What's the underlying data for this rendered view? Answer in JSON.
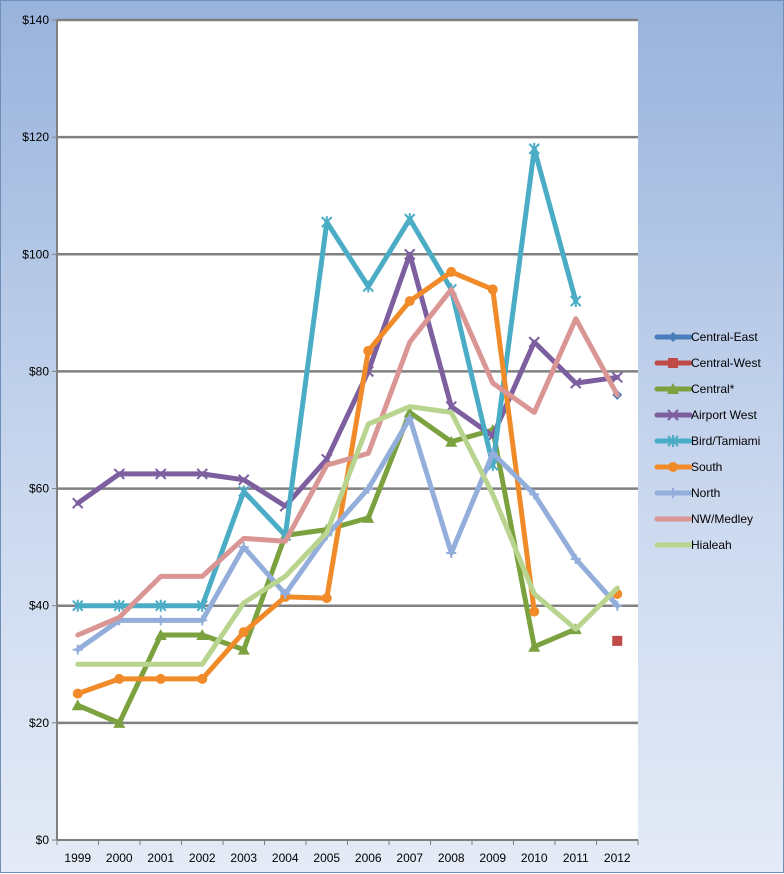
{
  "chart_data": {
    "type": "line",
    "title": "",
    "xlabel": "",
    "ylabel": "",
    "categories": [
      "1999",
      "2000",
      "2001",
      "2002",
      "2003",
      "2004",
      "2005",
      "2006",
      "2007",
      "2008",
      "2009",
      "2010",
      "2011",
      "2012"
    ],
    "ylim": [
      0,
      140
    ],
    "yticks": [
      0,
      20,
      40,
      60,
      80,
      100,
      120,
      140
    ],
    "ytick_labels": [
      "$0",
      "$20",
      "$40",
      "$60",
      "$80",
      "$100",
      "$120",
      "$140"
    ],
    "grid": true,
    "legend_position": "right",
    "series": [
      {
        "name": "Central-East",
        "color": "#4a7ebb",
        "marker": "diamond",
        "values": [
          null,
          null,
          null,
          null,
          null,
          null,
          null,
          null,
          null,
          null,
          null,
          null,
          null,
          76
        ]
      },
      {
        "name": "Central-West",
        "color": "#be4b48",
        "marker": "square",
        "values": [
          null,
          null,
          null,
          null,
          null,
          null,
          null,
          null,
          null,
          null,
          null,
          null,
          null,
          34
        ]
      },
      {
        "name": "Central*",
        "color": "#7ba23f",
        "marker": "triangle",
        "values": [
          23,
          20,
          35,
          35,
          32.5,
          52,
          53,
          55,
          73,
          68,
          70,
          33,
          36,
          null
        ]
      },
      {
        "name": "Airport West",
        "color": "#7d5fa0",
        "marker": "x",
        "values": [
          57.5,
          62.5,
          62.5,
          62.5,
          61.5,
          57,
          65,
          80,
          100,
          74,
          69,
          85,
          78,
          79
        ]
      },
      {
        "name": "Bird/Tamiami",
        "color": "#4aacc5",
        "marker": "star",
        "values": [
          40,
          40,
          40,
          40,
          59.5,
          52,
          105.5,
          94.5,
          106,
          94,
          64,
          118,
          92,
          null
        ]
      },
      {
        "name": "South",
        "color": "#f18b2a",
        "marker": "circle",
        "values": [
          25,
          27.5,
          27.5,
          27.5,
          35.5,
          41.5,
          41.3,
          83.5,
          92,
          97,
          94,
          39,
          null,
          42
        ]
      },
      {
        "name": "North",
        "color": "#94aedb",
        "marker": "plus",
        "values": [
          32.5,
          37.5,
          37.5,
          37.5,
          50,
          42,
          52,
          60,
          72,
          49,
          66,
          59,
          48,
          40
        ]
      },
      {
        "name": "NW/Medley",
        "color": "#d99694",
        "marker": "none",
        "values": [
          35,
          38,
          45,
          45,
          51.5,
          51,
          64,
          66,
          85,
          94,
          78,
          73,
          89,
          76
        ]
      },
      {
        "name": "Hialeah",
        "color": "#b8d48e",
        "marker": "none",
        "values": [
          30,
          30,
          30,
          30,
          40.5,
          45,
          52.5,
          71,
          74,
          73,
          59,
          42,
          36,
          43
        ]
      }
    ]
  }
}
